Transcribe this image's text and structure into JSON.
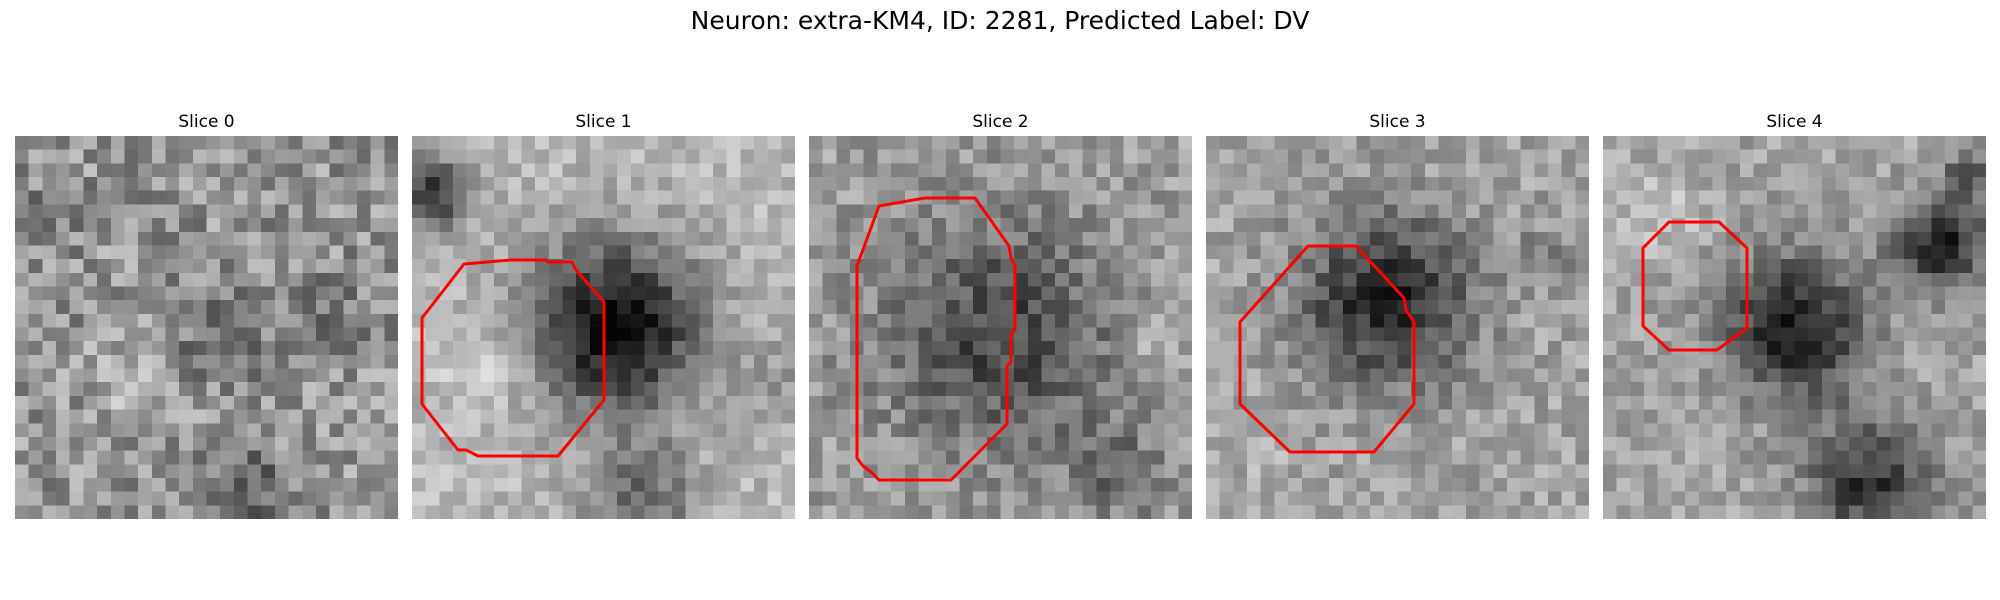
{
  "figure": {
    "title": "Neuron: extra-KM4, ID: 2281, Predicted Label: DV"
  },
  "contour_color": "#ff0000",
  "slices": [
    {
      "label": "Slice 0",
      "has_contour": false
    },
    {
      "label": "Slice 1",
      "has_contour": true
    },
    {
      "label": "Slice 2",
      "has_contour": true
    },
    {
      "label": "Slice 3",
      "has_contour": true
    },
    {
      "label": "Slice 4",
      "has_contour": true
    }
  ]
}
